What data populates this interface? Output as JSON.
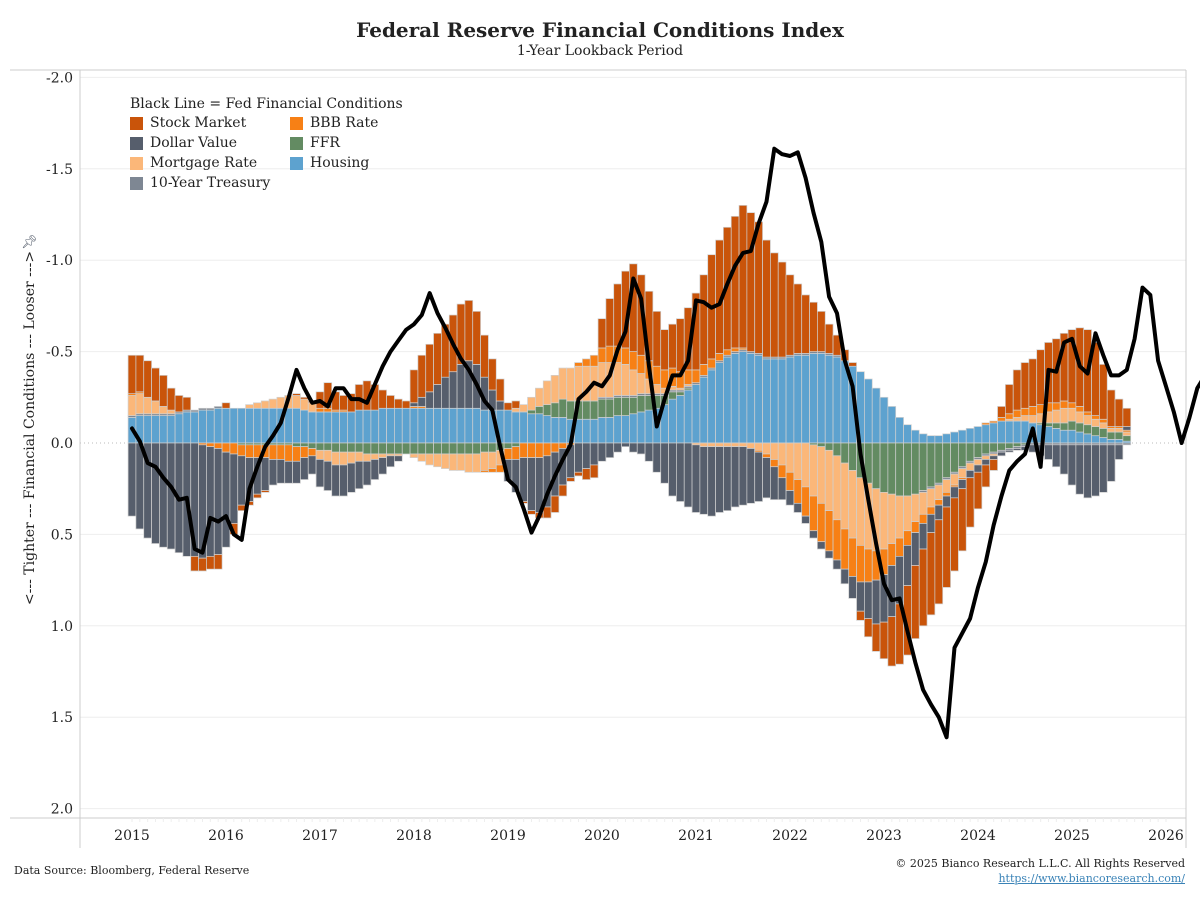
{
  "header": {
    "title": "Federal Reserve Financial Conditions Index",
    "subtitle": "1-Year Lookback Period"
  },
  "footer": {
    "source": "Data Source: Bloomberg, Federal Reserve",
    "copyright": "© 2025 Bianco Research L.L.C. All Rights Reserved",
    "url": "https://www.biancoresearch.com/"
  },
  "chart_data": {
    "type": "bar",
    "subtype": "stacked bar with line overlay",
    "title": "Federal Reserve Financial Conditions Index",
    "subtitle": "1-Year Lookback Period",
    "ylabel": "<--- Tighter  ---  Financial Conditions  ---  Looser --->",
    "xlabel": "",
    "y_inverted": true,
    "ylim": [
      -2.0,
      2.0
    ],
    "yticks": [
      "-2.0",
      "-1.5",
      "-1.0",
      "-0.5",
      "0.0",
      "0.5",
      "1.0",
      "1.5",
      "2.0"
    ],
    "ytick_values": [
      -2.0,
      -1.5,
      -1.0,
      -0.5,
      0.0,
      0.5,
      1.0,
      1.5,
      2.0
    ],
    "xticks": [
      "2015",
      "2016",
      "2017",
      "2018",
      "2019",
      "2020",
      "2021",
      "2022",
      "2023",
      "2024",
      "2025",
      "2026"
    ],
    "xlim": [
      2015.0,
      2026.0
    ],
    "grid": "horizontal",
    "legend": {
      "placement": "top-left",
      "header": "Black Line = Fed Financial Conditions",
      "items": [
        {
          "name": "Stock Market",
          "color": "#c9540a"
        },
        {
          "name": "BBB Rate",
          "color": "#f78015"
        },
        {
          "name": "Dollar Value",
          "color": "#565e6c"
        },
        {
          "name": "FFR",
          "color": "#638b62"
        },
        {
          "name": "Mortgage Rate",
          "color": "#fbb779"
        },
        {
          "name": "Housing",
          "color": "#5da2cf"
        },
        {
          "name": "10-Year Treasury",
          "color": "#7e8793"
        }
      ]
    },
    "x_start": 2015.0,
    "x_step_years": 0.08333,
    "series": [
      {
        "name": "Housing",
        "color": "#5da2cf",
        "values": [
          -0.14,
          -0.15,
          -0.15,
          -0.15,
          -0.15,
          -0.15,
          -0.16,
          -0.17,
          -0.17,
          -0.18,
          -0.18,
          -0.19,
          -0.19,
          -0.19,
          -0.19,
          -0.19,
          -0.19,
          -0.19,
          -0.19,
          -0.19,
          -0.19,
          -0.19,
          -0.18,
          -0.17,
          -0.17,
          -0.17,
          -0.17,
          -0.17,
          -0.17,
          -0.18,
          -0.18,
          -0.18,
          -0.19,
          -0.19,
          -0.19,
          -0.19,
          -0.19,
          -0.19,
          -0.19,
          -0.19,
          -0.19,
          -0.19,
          -0.19,
          -0.19,
          -0.19,
          -0.18,
          -0.18,
          -0.18,
          -0.18,
          -0.17,
          -0.17,
          -0.16,
          -0.16,
          -0.15,
          -0.14,
          -0.14,
          -0.13,
          -0.13,
          -0.13,
          -0.13,
          -0.14,
          -0.14,
          -0.15,
          -0.15,
          -0.16,
          -0.17,
          -0.18,
          -0.19,
          -0.21,
          -0.24,
          -0.26,
          -0.29,
          -0.32,
          -0.36,
          -0.4,
          -0.44,
          -0.47,
          -0.49,
          -0.5,
          -0.49,
          -0.48,
          -0.46,
          -0.46,
          -0.46,
          -0.47,
          -0.48,
          -0.48,
          -0.49,
          -0.49,
          -0.48,
          -0.47,
          -0.45,
          -0.42,
          -0.39,
          -0.35,
          -0.3,
          -0.25,
          -0.2,
          -0.14,
          -0.1,
          -0.07,
          -0.05,
          -0.04,
          -0.04,
          -0.05,
          -0.06,
          -0.07,
          -0.08,
          -0.09,
          -0.1,
          -0.11,
          -0.12,
          -0.12,
          -0.12,
          -0.12,
          -0.11,
          -0.1,
          -0.09,
          -0.08,
          -0.07,
          -0.07,
          -0.06,
          -0.05,
          -0.04,
          -0.03,
          -0.02,
          -0.02,
          -0.01
        ]
      },
      {
        "name": "FFR",
        "color": "#638b62",
        "values": [
          0,
          0,
          0,
          0,
          0,
          0,
          0,
          0,
          0,
          0,
          0,
          0,
          0,
          0,
          0.01,
          0.01,
          0.01,
          0.01,
          0.01,
          0.01,
          0.01,
          0.02,
          0.02,
          0.03,
          0.04,
          0.04,
          0.05,
          0.05,
          0.05,
          0.05,
          0.06,
          0.06,
          0.06,
          0.06,
          0.06,
          0.06,
          0.06,
          0.06,
          0.06,
          0.06,
          0.06,
          0.06,
          0.06,
          0.06,
          0.06,
          0.05,
          0.05,
          0.04,
          0.03,
          0.02,
          0,
          -0.02,
          -0.04,
          -0.06,
          -0.08,
          -0.1,
          -0.1,
          -0.1,
          -0.1,
          -0.1,
          -0.1,
          -0.1,
          -0.1,
          -0.1,
          -0.09,
          -0.09,
          -0.08,
          -0.07,
          -0.05,
          -0.04,
          -0.02,
          -0.01,
          0,
          0,
          0,
          0,
          0,
          0,
          0,
          0,
          0,
          0,
          0,
          0,
          0,
          0,
          0,
          0.01,
          0.02,
          0.04,
          0.07,
          0.11,
          0.15,
          0.19,
          0.22,
          0.25,
          0.27,
          0.28,
          0.29,
          0.29,
          0.28,
          0.26,
          0.24,
          0.22,
          0.19,
          0.16,
          0.13,
          0.1,
          0.08,
          0.06,
          0.05,
          0.04,
          0.03,
          0.02,
          0.01,
          0,
          -0.01,
          -0.02,
          -0.03,
          -0.04,
          -0.05,
          -0.05,
          -0.05,
          -0.05,
          -0.05,
          -0.04,
          -0.04,
          -0.03
        ]
      },
      {
        "name": "Mortgage Rate",
        "color": "#fbb779",
        "values": [
          -0.11,
          -0.11,
          -0.09,
          -0.07,
          -0.04,
          -0.02,
          0,
          0,
          0,
          0,
          0,
          0,
          0,
          0,
          0,
          -0.02,
          -0.03,
          -0.04,
          -0.05,
          -0.06,
          -0.07,
          -0.07,
          -0.06,
          -0.05,
          0.05,
          0.06,
          0.07,
          0.07,
          0.06,
          0.05,
          0.04,
          0.03,
          0.02,
          0.01,
          0.01,
          0,
          0.02,
          0.04,
          0.06,
          0.07,
          0.08,
          0.09,
          0.09,
          0.1,
          0.1,
          0.1,
          0.09,
          0.08,
          0,
          -0.02,
          -0.04,
          -0.07,
          -0.1,
          -0.13,
          -0.15,
          -0.17,
          -0.18,
          -0.19,
          -0.19,
          -0.19,
          -0.19,
          -0.19,
          -0.18,
          -0.17,
          -0.14,
          -0.11,
          -0.08,
          -0.05,
          -0.03,
          -0.02,
          -0.01,
          -0.01,
          0.01,
          0.02,
          0.02,
          0.02,
          0.02,
          0.02,
          0.02,
          0.03,
          0.04,
          0.06,
          0.09,
          0.12,
          0.16,
          0.2,
          0.24,
          0.28,
          0.31,
          0.33,
          0.35,
          0.36,
          0.37,
          0.37,
          0.36,
          0.34,
          0.31,
          0.27,
          0.23,
          0.19,
          0.15,
          0.12,
          0.1,
          0.08,
          0.07,
          0.06,
          0.05,
          0.04,
          0.03,
          0.02,
          0.01,
          0,
          -0.01,
          -0.02,
          -0.03,
          -0.04,
          -0.05,
          -0.06,
          -0.07,
          -0.08,
          -0.07,
          -0.06,
          -0.05,
          -0.04,
          -0.03,
          -0.02,
          -0.02,
          -0.02
        ]
      },
      {
        "name": "BBB Rate",
        "color": "#f78015",
        "values": [
          -0.01,
          -0.01,
          0,
          0,
          0,
          0,
          0,
          0,
          0,
          0.01,
          0.02,
          0.03,
          0.05,
          0.06,
          0.06,
          0.07,
          0.07,
          0.07,
          0.08,
          0.08,
          0.09,
          0.08,
          0.06,
          0.04,
          -0.02,
          -0.02,
          -0.01,
          -0.01,
          0,
          0,
          0,
          0,
          0,
          0,
          0,
          0,
          -0.01,
          -0.01,
          0,
          0,
          0,
          0,
          0,
          0,
          0,
          0.01,
          0.02,
          0.04,
          0.06,
          0.07,
          0.08,
          0.08,
          0.08,
          0.07,
          0.05,
          0.03,
          0.01,
          -0.02,
          -0.04,
          -0.06,
          -0.08,
          -0.09,
          -0.09,
          -0.09,
          -0.1,
          -0.1,
          -0.1,
          -0.1,
          -0.1,
          -0.1,
          -0.09,
          -0.08,
          -0.07,
          -0.06,
          -0.05,
          -0.04,
          -0.03,
          -0.02,
          -0.01,
          0,
          0.01,
          0.02,
          0.04,
          0.07,
          0.1,
          0.13,
          0.16,
          0.19,
          0.21,
          0.22,
          0.22,
          0.22,
          0.21,
          0.2,
          0.18,
          0.16,
          0.14,
          0.12,
          0.1,
          0.08,
          0.06,
          0.05,
          0.04,
          0.03,
          0.02,
          0.01,
          0.01,
          0,
          0,
          -0.01,
          -0.01,
          -0.02,
          -0.03,
          -0.04,
          -0.04,
          -0.05,
          -0.05,
          -0.05,
          -0.04,
          -0.04,
          -0.03,
          -0.03,
          -0.02,
          -0.02,
          -0.02,
          -0.01,
          -0.01,
          -0.01
        ]
      },
      {
        "name": "Dollar Value",
        "color": "#565e6c",
        "values": [
          0.4,
          0.47,
          0.52,
          0.55,
          0.57,
          0.58,
          0.6,
          0.62,
          0.62,
          0.62,
          0.6,
          0.58,
          0.52,
          0.38,
          0.27,
          0.24,
          0.2,
          0.18,
          0.14,
          0.13,
          0.12,
          0.12,
          0.12,
          0.1,
          0.15,
          0.16,
          0.17,
          0.17,
          0.16,
          0.15,
          0.13,
          0.11,
          0.09,
          0.06,
          0.03,
          0,
          -0.02,
          -0.05,
          -0.09,
          -0.13,
          -0.17,
          -0.2,
          -0.24,
          -0.26,
          -0.24,
          -0.18,
          -0.11,
          -0.05,
          0.12,
          0.18,
          0.24,
          0.29,
          0.3,
          0.28,
          0.24,
          0.2,
          0.18,
          0.16,
          0.14,
          0.12,
          0.1,
          0.08,
          0.05,
          0.02,
          0.05,
          0.06,
          0.1,
          0.16,
          0.22,
          0.29,
          0.32,
          0.35,
          0.37,
          0.37,
          0.38,
          0.36,
          0.35,
          0.33,
          0.32,
          0.3,
          0.27,
          0.22,
          0.18,
          0.12,
          0.08,
          0.05,
          0.04,
          0.04,
          0.04,
          0.04,
          0.05,
          0.08,
          0.12,
          0.16,
          0.2,
          0.24,
          0.26,
          0.28,
          0.26,
          0.22,
          0.18,
          0.14,
          0.1,
          0.08,
          0.06,
          0.06,
          0.05,
          0.04,
          0.04,
          0.03,
          0.02,
          0.02,
          0.01,
          0.01,
          0.02,
          0.04,
          0.06,
          0.08,
          0.12,
          0.16,
          0.22,
          0.27,
          0.29,
          0.28,
          0.26,
          0.2,
          0.08,
          -0.02
        ]
      },
      {
        "name": "10-Year Treasury",
        "color": "#7e8793",
        "values": [
          -0.01,
          -0.01,
          -0.01,
          -0.01,
          -0.01,
          -0.01,
          -0.01,
          -0.01,
          -0.01,
          -0.01,
          -0.01,
          -0.01,
          0,
          0,
          0,
          0,
          0,
          0,
          0,
          0,
          0,
          0,
          0,
          0,
          0,
          0,
          0,
          0,
          0,
          0,
          0,
          0,
          0,
          0,
          0,
          0,
          0,
          0,
          0,
          0,
          0,
          0,
          0,
          0,
          0,
          0,
          0,
          0,
          0,
          0,
          0,
          0,
          0,
          0,
          0,
          0,
          0,
          0,
          0,
          0,
          -0.01,
          -0.01,
          -0.01,
          -0.01,
          -0.01,
          -0.01,
          -0.01,
          -0.01,
          -0.01,
          -0.01,
          -0.01,
          -0.01,
          -0.01,
          -0.01,
          -0.01,
          -0.01,
          -0.01,
          -0.01,
          -0.01,
          -0.01,
          -0.01,
          -0.01,
          -0.01,
          -0.01,
          -0.01,
          -0.01,
          -0.01,
          -0.01,
          -0.01,
          -0.01,
          -0.01,
          0,
          0,
          0,
          0,
          0,
          0,
          0,
          0,
          0,
          0,
          0.01,
          0.01,
          0.01,
          0.01,
          0.01,
          0.01,
          0.01,
          0.01,
          0.01,
          0.01,
          0.01,
          0.01,
          0.01,
          0.01,
          0.01,
          0.01,
          0.01,
          0.01,
          0.01,
          0.01,
          0.01,
          0.01,
          0.01,
          0.01,
          0.01,
          0.01,
          0.01
        ]
      },
      {
        "name": "Stock Market",
        "color": "#c9540a",
        "values": [
          -0.21,
          -0.2,
          -0.2,
          -0.18,
          -0.17,
          -0.12,
          -0.09,
          -0.07,
          0.08,
          0.07,
          0.07,
          0.08,
          -0.03,
          0.06,
          0.03,
          0.02,
          0.02,
          0.01,
          0,
          0,
          0,
          -0.01,
          -0.01,
          -0.01,
          -0.09,
          -0.14,
          -0.1,
          -0.08,
          -0.1,
          -0.14,
          -0.16,
          -0.14,
          -0.1,
          -0.07,
          -0.05,
          -0.04,
          -0.18,
          -0.23,
          -0.26,
          -0.28,
          -0.29,
          -0.31,
          -0.33,
          -0.33,
          -0.29,
          -0.23,
          -0.17,
          -0.12,
          -0.04,
          -0.04,
          0.01,
          0.02,
          0.03,
          0.06,
          0.09,
          0.06,
          0.02,
          0.02,
          0.06,
          0.07,
          -0.16,
          -0.26,
          -0.34,
          -0.42,
          -0.48,
          -0.44,
          -0.38,
          -0.3,
          -0.22,
          -0.24,
          -0.29,
          -0.34,
          -0.42,
          -0.49,
          -0.57,
          -0.62,
          -0.67,
          -0.72,
          -0.78,
          -0.76,
          -0.72,
          -0.64,
          -0.57,
          -0.52,
          -0.44,
          -0.38,
          -0.32,
          -0.27,
          -0.22,
          -0.16,
          -0.11,
          -0.06,
          -0.02,
          0.05,
          0.1,
          0.15,
          0.2,
          0.27,
          0.33,
          0.38,
          0.4,
          0.42,
          0.45,
          0.46,
          0.44,
          0.4,
          0.34,
          0.27,
          0.2,
          0.12,
          0.06,
          -0.06,
          -0.16,
          -0.22,
          -0.25,
          -0.26,
          -0.3,
          -0.33,
          -0.35,
          -0.37,
          -0.4,
          -0.43,
          -0.45,
          -0.4,
          -0.3,
          -0.2,
          -0.15,
          -0.1
        ]
      }
    ],
    "line": {
      "name": "Fed Financial Conditions",
      "color": "#000000",
      "values": [
        -0.08,
        -0.01,
        0.11,
        0.13,
        0.19,
        0.24,
        0.31,
        0.3,
        0.58,
        0.6,
        0.41,
        0.43,
        0.4,
        0.5,
        0.53,
        0.25,
        0.13,
        0.02,
        -0.04,
        -0.11,
        -0.25,
        -0.4,
        -0.3,
        -0.22,
        -0.23,
        -0.2,
        -0.3,
        -0.3,
        -0.24,
        -0.24,
        -0.22,
        -0.32,
        -0.42,
        -0.5,
        -0.56,
        -0.62,
        -0.65,
        -0.7,
        -0.82,
        -0.71,
        -0.63,
        -0.54,
        -0.46,
        -0.4,
        -0.32,
        -0.23,
        -0.18,
        0.02,
        0.2,
        0.24,
        0.36,
        0.49,
        0.4,
        0.28,
        0.18,
        0.09,
        0.01,
        -0.24,
        -0.28,
        -0.33,
        -0.31,
        -0.37,
        -0.51,
        -0.61,
        -0.9,
        -0.79,
        -0.42,
        -0.09,
        -0.24,
        -0.37,
        -0.37,
        -0.45,
        -0.78,
        -0.77,
        -0.74,
        -0.76,
        -0.87,
        -0.97,
        -1.04,
        -1.05,
        -1.2,
        -1.32,
        -1.61,
        -1.58,
        -1.57,
        -1.59,
        -1.45,
        -1.26,
        -1.1,
        -0.8,
        -0.71,
        -0.45,
        -0.31,
        0.06,
        0.31,
        0.55,
        0.77,
        0.86,
        0.85,
        1.03,
        1.2,
        1.35,
        1.43,
        1.5,
        1.61,
        1.12,
        1.04,
        0.96,
        0.79,
        0.65,
        0.45,
        0.29,
        0.15,
        0.1,
        0.06,
        -0.08,
        0.13,
        -0.4,
        -0.39,
        -0.55,
        -0.57,
        -0.42,
        -0.38,
        -0.6,
        -0.48,
        -0.37,
        -0.37,
        -0.4,
        -0.57,
        -0.85,
        -0.81,
        -0.45,
        -0.31,
        -0.17,
        0.0,
        -0.14,
        -0.3,
        -0.37,
        -0.45,
        -0.52
      ]
    }
  }
}
